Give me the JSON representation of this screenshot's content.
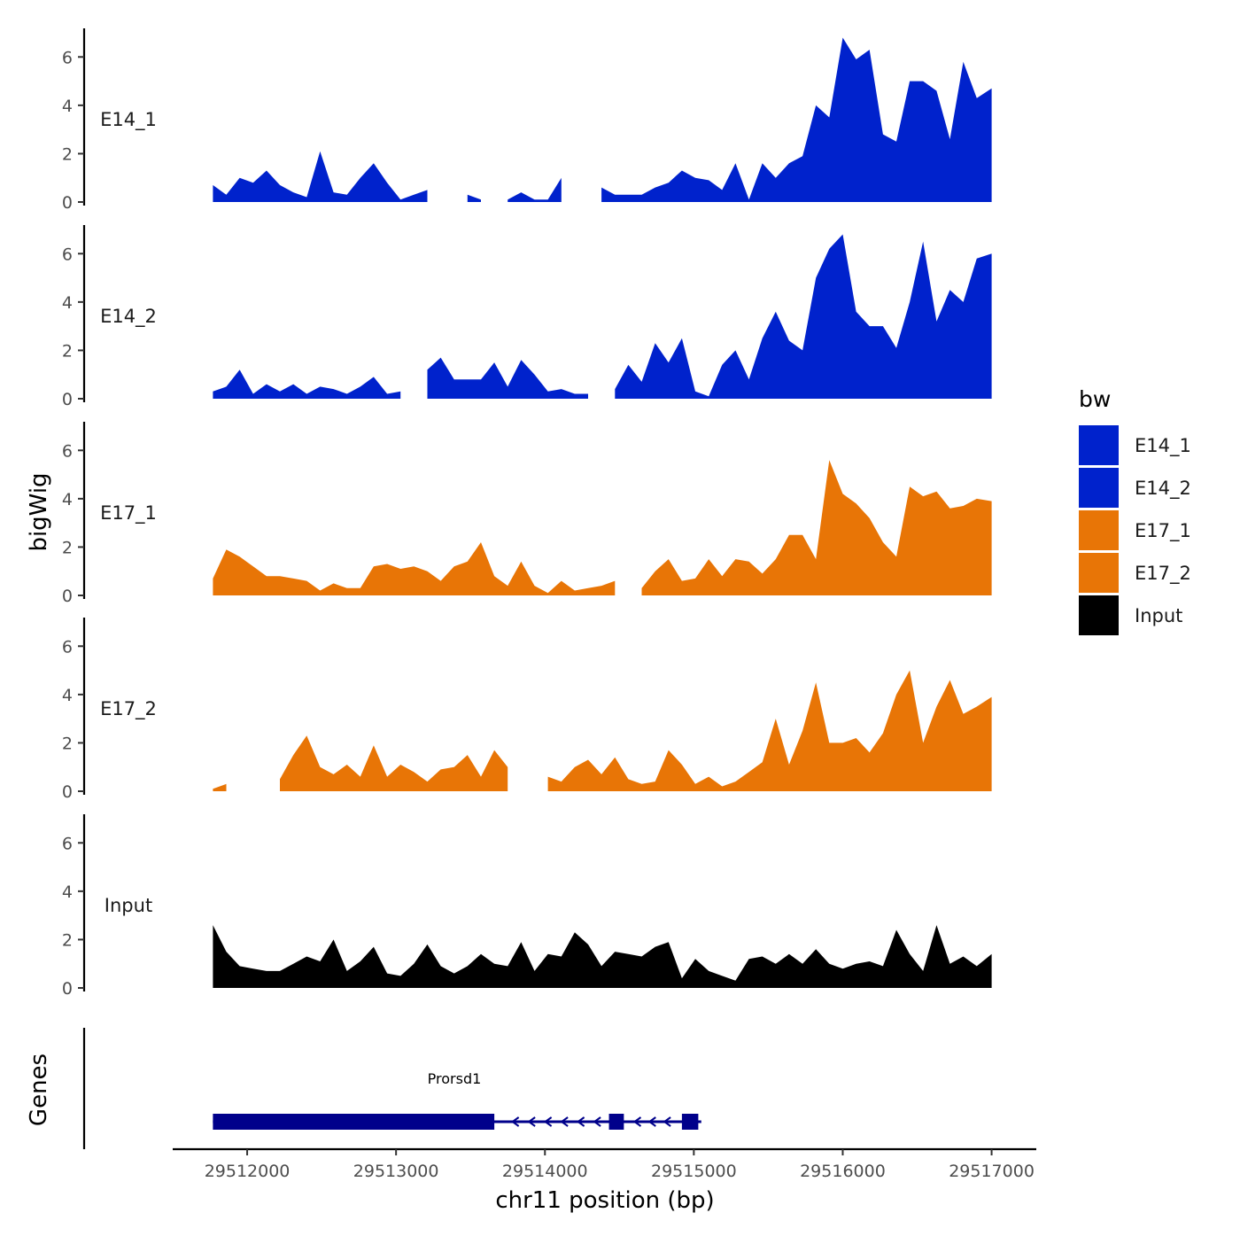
{
  "chart_data": {
    "type": "area",
    "title": "",
    "ylabel": "bigWig",
    "xlabel": "chr11 position (bp)",
    "xlim": [
      29511500,
      29517300
    ],
    "ylim": [
      0,
      7
    ],
    "y_ticks": [
      0,
      2,
      4,
      6
    ],
    "x_ticks": [
      29512000,
      29513000,
      29514000,
      29515000,
      29516000,
      29517000
    ],
    "x_tick_labels": [
      "29512000",
      "29513000",
      "29514000",
      "29515000",
      "29516000",
      "29517000"
    ],
    "legend": {
      "title": "bw",
      "placement": "right",
      "entries": [
        {
          "name": "E14_1",
          "color": "#0022CC"
        },
        {
          "name": "E14_2",
          "color": "#0022CC"
        },
        {
          "name": "E17_1",
          "color": "#E87506"
        },
        {
          "name": "E17_2",
          "color": "#E87506"
        },
        {
          "name": "Input",
          "color": "#000000"
        }
      ]
    },
    "x": [
      29511770,
      29511860,
      29511950,
      29512040,
      29512130,
      29512220,
      29512310,
      29512400,
      29512490,
      29512580,
      29512670,
      29512760,
      29512850,
      29512940,
      29513030,
      29513120,
      29513210,
      29513300,
      29513390,
      29513480,
      29513570,
      29513660,
      29513750,
      29513840,
      29513930,
      29514020,
      29514110,
      29514200,
      29514290,
      29514380,
      29514470,
      29514560,
      29514650,
      29514740,
      29514830,
      29514920,
      29515010,
      29515100,
      29515190,
      29515280,
      29515370,
      29515460,
      29515550,
      29515640,
      29515730,
      29515820,
      29515910,
      29516000,
      29516090,
      29516180,
      29516270,
      29516360,
      29516450,
      29516540,
      29516630,
      29516720,
      29516810,
      29516900,
      29517000
    ],
    "series": [
      {
        "name": "E14_1",
        "color": "#0022CC",
        "values": [
          0.7,
          0.3,
          1.0,
          0.8,
          1.3,
          0.7,
          0.4,
          0.2,
          2.1,
          0.4,
          0.3,
          1.0,
          1.6,
          0.8,
          0.1,
          0.3,
          0.5,
          null,
          null,
          0.3,
          0.1,
          null,
          0.1,
          0.4,
          0.1,
          0.1,
          1.0,
          null,
          null,
          0.6,
          0.3,
          0.3,
          0.3,
          0.6,
          0.8,
          1.3,
          1.0,
          0.9,
          0.5,
          1.6,
          0.1,
          1.6,
          1.0,
          1.6,
          1.9,
          4.0,
          3.5,
          6.8,
          5.9,
          6.3,
          2.8,
          2.5,
          5.0,
          5.0,
          4.6,
          2.6,
          5.8,
          4.3,
          4.7
        ]
      },
      {
        "name": "E14_2",
        "color": "#0022CC",
        "values": [
          0.3,
          0.5,
          1.2,
          0.2,
          0.6,
          0.3,
          0.6,
          0.2,
          0.5,
          0.4,
          0.2,
          0.5,
          0.9,
          0.2,
          0.3,
          null,
          1.2,
          1.7,
          0.8,
          0.8,
          0.8,
          1.5,
          0.5,
          1.6,
          1.0,
          0.3,
          0.4,
          0.2,
          0.2,
          null,
          0.4,
          1.4,
          0.7,
          2.3,
          1.5,
          2.5,
          0.3,
          0.1,
          1.4,
          2.0,
          0.8,
          2.5,
          3.6,
          2.4,
          2.0,
          5.0,
          6.2,
          6.8,
          3.6,
          3.0,
          3.0,
          2.1,
          4.0,
          6.5,
          3.2,
          4.5,
          4.0,
          5.8,
          6.0
        ]
      },
      {
        "name": "E17_1",
        "color": "#E87506",
        "values": [
          0.7,
          1.9,
          1.6,
          1.2,
          0.8,
          0.8,
          0.7,
          0.6,
          0.2,
          0.5,
          0.3,
          0.3,
          1.2,
          1.3,
          1.1,
          1.2,
          1.0,
          0.6,
          1.2,
          1.4,
          2.2,
          0.8,
          0.4,
          1.4,
          0.4,
          0.1,
          0.6,
          0.2,
          0.3,
          0.4,
          0.6,
          null,
          0.3,
          1.0,
          1.5,
          0.6,
          0.7,
          1.5,
          0.8,
          1.5,
          1.4,
          0.9,
          1.5,
          2.5,
          2.5,
          1.5,
          5.6,
          4.2,
          3.8,
          3.2,
          2.2,
          1.6,
          4.5,
          4.1,
          4.3,
          3.6,
          3.7,
          4.0,
          3.9
        ]
      },
      {
        "name": "E17_2",
        "color": "#E87506",
        "values": [
          0.1,
          0.3,
          null,
          null,
          null,
          0.5,
          1.5,
          2.3,
          1.0,
          0.7,
          1.1,
          0.6,
          1.9,
          0.6,
          1.1,
          0.8,
          0.4,
          0.9,
          1.0,
          1.5,
          0.6,
          1.7,
          1.0,
          null,
          null,
          0.6,
          0.4,
          1.0,
          1.3,
          0.7,
          1.4,
          0.5,
          0.3,
          0.4,
          1.7,
          1.1,
          0.3,
          0.6,
          0.2,
          0.4,
          0.8,
          1.2,
          3.0,
          1.1,
          2.5,
          4.5,
          2.0,
          2.0,
          2.2,
          1.6,
          2.4,
          4.0,
          5.0,
          2.0,
          3.5,
          4.6,
          3.2,
          3.5,
          3.9
        ]
      },
      {
        "name": "Input",
        "color": "#000000",
        "values": [
          2.6,
          1.5,
          0.9,
          0.8,
          0.7,
          0.7,
          1.0,
          1.3,
          1.1,
          2.0,
          0.7,
          1.1,
          1.7,
          0.6,
          0.5,
          1.0,
          1.8,
          0.9,
          0.6,
          0.9,
          1.4,
          1.0,
          0.9,
          1.9,
          0.7,
          1.4,
          1.3,
          2.3,
          1.8,
          0.9,
          1.5,
          1.4,
          1.3,
          1.7,
          1.9,
          0.4,
          1.2,
          0.7,
          0.5,
          0.3,
          1.2,
          1.3,
          1.0,
          1.4,
          1.0,
          1.6,
          1.0,
          0.8,
          1.0,
          1.1,
          0.9,
          2.4,
          1.4,
          0.7,
          2.6,
          1.0,
          1.3,
          0.9,
          1.4
        ]
      }
    ],
    "genes_track": {
      "label": "Genes",
      "gene_name": "Prorsd1",
      "color": "#00008B",
      "start": 29511770,
      "end": 29515050,
      "strand": "-",
      "exons": [
        [
          29511770,
          29513660
        ],
        [
          29514430,
          29514530
        ],
        [
          29514920,
          29515030
        ]
      ],
      "arrows_at": [
        29513800,
        29513910,
        29514020,
        29514130,
        29514240,
        29514350,
        29514620,
        29514720,
        29514820
      ]
    }
  }
}
